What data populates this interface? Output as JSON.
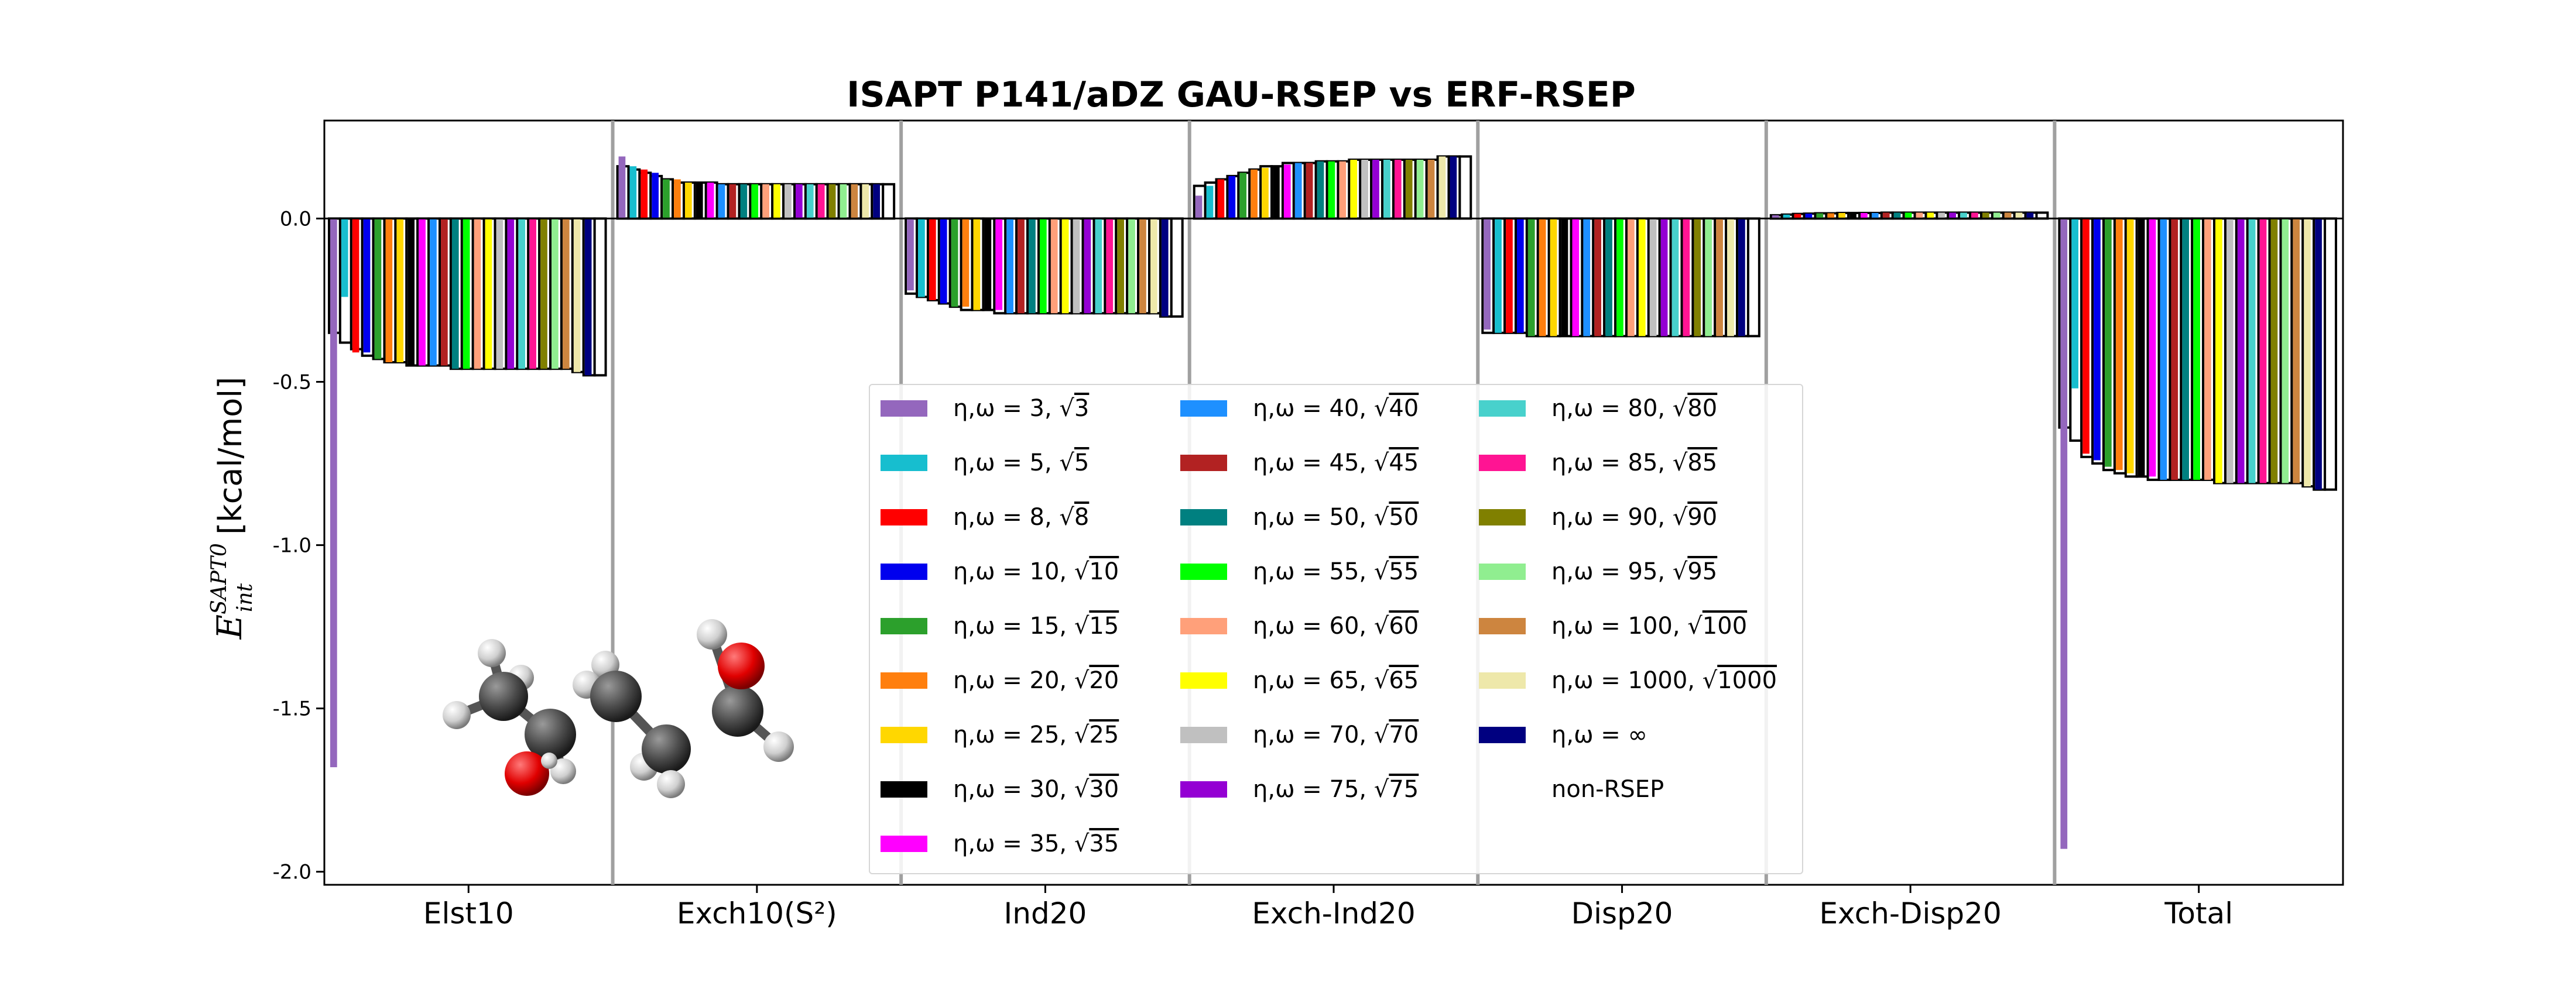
{
  "chart_data": {
    "type": "bar",
    "title": "ISAPT P141/aDZ GAU-RSEP vs ERF-RSEP",
    "ylabel": "E_int^SAPT0 [kcal/mol]",
    "ylim": [
      -2.04,
      0.3
    ],
    "yticks": [
      "0.0",
      "-0.5",
      "-1.0",
      "-1.5",
      "-2.0"
    ],
    "grid": false,
    "legend_position": "lower-center",
    "categories": [
      "Elst10",
      "Exch10(S²)",
      "Ind20",
      "Exch-Ind20",
      "Disp20",
      "Exch-Disp20",
      "Total"
    ],
    "series": [
      {
        "name": "η,ω = 3, √3",
        "color": "#9467bd",
        "gau": [
          -1.68,
          0.19,
          -0.22,
          0.07,
          -0.34,
          0.01,
          -1.93
        ],
        "erf": [
          -0.35,
          0.16,
          -0.23,
          0.1,
          -0.35,
          0.01,
          -0.64
        ]
      },
      {
        "name": "η,ω = 5, √5",
        "color": "#17becf",
        "gau": [
          -0.24,
          0.16,
          -0.24,
          0.1,
          -0.35,
          0.012,
          -0.52
        ],
        "erf": [
          -0.38,
          0.15,
          -0.24,
          0.11,
          -0.35,
          0.012,
          -0.68
        ]
      },
      {
        "name": "η,ω = 8, √8",
        "color": "#ff0000",
        "gau": [
          -0.41,
          0.15,
          -0.25,
          0.12,
          -0.35,
          0.014,
          -0.72
        ],
        "erf": [
          -0.4,
          0.14,
          -0.25,
          0.12,
          -0.35,
          0.014,
          -0.73
        ]
      },
      {
        "name": "η,ω = 10, √10",
        "color": "#0000ee",
        "gau": [
          -0.41,
          0.14,
          -0.26,
          0.13,
          -0.35,
          0.015,
          -0.74
        ],
        "erf": [
          -0.42,
          0.13,
          -0.26,
          0.13,
          -0.35,
          0.015,
          -0.75
        ]
      },
      {
        "name": "η,ω = 15, √15",
        "color": "#2ca02c",
        "gau": [
          -0.43,
          0.12,
          -0.27,
          0.14,
          -0.36,
          0.016,
          -0.76
        ],
        "erf": [
          -0.43,
          0.12,
          -0.27,
          0.14,
          -0.36,
          0.016,
          -0.77
        ]
      },
      {
        "name": "η,ω = 20, √20",
        "color": "#ff7f0e",
        "gau": [
          -0.44,
          0.12,
          -0.27,
          0.15,
          -0.36,
          0.016,
          -0.77
        ],
        "erf": [
          -0.44,
          0.11,
          -0.28,
          0.15,
          -0.36,
          0.016,
          -0.78
        ]
      },
      {
        "name": "η,ω = 25, √25",
        "color": "#ffd700",
        "gau": [
          -0.44,
          0.11,
          -0.28,
          0.155,
          -0.36,
          0.017,
          -0.78
        ],
        "erf": [
          -0.44,
          0.11,
          -0.28,
          0.16,
          -0.36,
          0.017,
          -0.79
        ]
      },
      {
        "name": "η,ω = 30, √30",
        "color": "#000000",
        "gau": [
          -0.45,
          0.11,
          -0.28,
          0.16,
          -0.36,
          0.017,
          -0.79
        ],
        "erf": [
          -0.45,
          0.11,
          -0.28,
          0.16,
          -0.36,
          0.017,
          -0.79
        ]
      },
      {
        "name": "η,ω = 35, √35",
        "color": "#ff00ff",
        "gau": [
          -0.45,
          0.11,
          -0.28,
          0.165,
          -0.36,
          0.017,
          -0.79
        ],
        "erf": [
          -0.45,
          0.11,
          -0.29,
          0.17,
          -0.36,
          0.017,
          -0.8
        ]
      },
      {
        "name": "η,ω = 40, √40",
        "color": "#1e90ff",
        "gau": [
          -0.45,
          0.105,
          -0.29,
          0.17,
          -0.36,
          0.017,
          -0.8
        ],
        "erf": [
          -0.45,
          0.105,
          -0.29,
          0.17,
          -0.36,
          0.017,
          -0.8
        ]
      },
      {
        "name": "η,ω = 45, √45",
        "color": "#b22222",
        "gau": [
          -0.45,
          0.105,
          -0.29,
          0.17,
          -0.36,
          0.018,
          -0.8
        ],
        "erf": [
          -0.45,
          0.105,
          -0.29,
          0.17,
          -0.36,
          0.018,
          -0.8
        ]
      },
      {
        "name": "η,ω = 50, √50",
        "color": "#008080",
        "gau": [
          -0.46,
          0.105,
          -0.29,
          0.175,
          -0.36,
          0.018,
          -0.8
        ],
        "erf": [
          -0.46,
          0.105,
          -0.29,
          0.175,
          -0.36,
          0.018,
          -0.8
        ]
      },
      {
        "name": "η,ω = 55, √55",
        "color": "#00ff00",
        "gau": [
          -0.46,
          0.105,
          -0.29,
          0.175,
          -0.36,
          0.018,
          -0.8
        ],
        "erf": [
          -0.46,
          0.105,
          -0.29,
          0.175,
          -0.36,
          0.018,
          -0.8
        ]
      },
      {
        "name": "η,ω = 60, √60",
        "color": "#ffa07a",
        "gau": [
          -0.46,
          0.105,
          -0.29,
          0.175,
          -0.36,
          0.018,
          -0.8
        ],
        "erf": [
          -0.46,
          0.105,
          -0.29,
          0.175,
          -0.36,
          0.018,
          -0.8
        ]
      },
      {
        "name": "η,ω = 65, √65",
        "color": "#ffff00",
        "gau": [
          -0.46,
          0.105,
          -0.29,
          0.18,
          -0.36,
          0.018,
          -0.81
        ],
        "erf": [
          -0.46,
          0.105,
          -0.29,
          0.18,
          -0.36,
          0.018,
          -0.81
        ]
      },
      {
        "name": "η,ω = 70, √70",
        "color": "#c0c0c0",
        "gau": [
          -0.46,
          0.105,
          -0.29,
          0.18,
          -0.36,
          0.018,
          -0.81
        ],
        "erf": [
          -0.46,
          0.105,
          -0.29,
          0.18,
          -0.36,
          0.018,
          -0.81
        ]
      },
      {
        "name": "η,ω = 75, √75",
        "color": "#9400d3",
        "gau": [
          -0.46,
          0.105,
          -0.29,
          0.18,
          -0.36,
          0.018,
          -0.81
        ],
        "erf": [
          -0.46,
          0.105,
          -0.29,
          0.18,
          -0.36,
          0.018,
          -0.81
        ]
      },
      {
        "name": "η,ω = 80, √80",
        "color": "#48d1cc",
        "gau": [
          -0.46,
          0.105,
          -0.29,
          0.18,
          -0.36,
          0.018,
          -0.81
        ],
        "erf": [
          -0.46,
          0.105,
          -0.29,
          0.18,
          -0.36,
          0.018,
          -0.81
        ]
      },
      {
        "name": "η,ω = 85, √85",
        "color": "#ff1493",
        "gau": [
          -0.46,
          0.105,
          -0.29,
          0.18,
          -0.36,
          0.018,
          -0.81
        ],
        "erf": [
          -0.46,
          0.105,
          -0.29,
          0.18,
          -0.36,
          0.018,
          -0.81
        ]
      },
      {
        "name": "η,ω = 90, √90",
        "color": "#808000",
        "gau": [
          -0.46,
          0.105,
          -0.29,
          0.18,
          -0.36,
          0.018,
          -0.81
        ],
        "erf": [
          -0.46,
          0.105,
          -0.29,
          0.18,
          -0.36,
          0.018,
          -0.81
        ]
      },
      {
        "name": "η,ω = 95, √95",
        "color": "#90ee90",
        "gau": [
          -0.46,
          0.105,
          -0.29,
          0.18,
          -0.36,
          0.018,
          -0.81
        ],
        "erf": [
          -0.46,
          0.105,
          -0.29,
          0.18,
          -0.36,
          0.018,
          -0.81
        ]
      },
      {
        "name": "η,ω = 100, √100",
        "color": "#cd853f",
        "gau": [
          -0.46,
          0.105,
          -0.29,
          0.18,
          -0.36,
          0.018,
          -0.81
        ],
        "erf": [
          -0.46,
          0.105,
          -0.29,
          0.18,
          -0.36,
          0.018,
          -0.81
        ]
      },
      {
        "name": "η,ω = 1000, √1000",
        "color": "#eee8aa",
        "gau": [
          -0.47,
          0.105,
          -0.29,
          0.19,
          -0.36,
          0.018,
          -0.82
        ],
        "erf": [
          -0.47,
          0.105,
          -0.29,
          0.19,
          -0.36,
          0.018,
          -0.82
        ]
      },
      {
        "name": "η,ω = ∞",
        "color": "#000080",
        "gau": [
          -0.48,
          0.105,
          -0.3,
          0.19,
          -0.36,
          0.018,
          -0.83
        ],
        "erf": [
          -0.48,
          0.105,
          -0.3,
          0.19,
          -0.36,
          0.018,
          -0.83
        ]
      },
      {
        "name": "non-RSEP",
        "color": "#ffffff",
        "gau": [
          -0.48,
          0.105,
          -0.3,
          0.19,
          -0.36,
          0.018,
          -0.83
        ],
        "erf": [
          -0.48,
          0.105,
          -0.3,
          0.19,
          -0.36,
          0.018,
          -0.83
        ]
      }
    ]
  },
  "legend": {
    "col1": [
      {
        "prefix": "η,ω = 3, ",
        "root": "3",
        "color": "#9467bd"
      },
      {
        "prefix": "η,ω = 5, ",
        "root": "5",
        "color": "#17becf"
      },
      {
        "prefix": "η,ω = 8, ",
        "root": "8",
        "color": "#ff0000"
      },
      {
        "prefix": "η,ω = 10, ",
        "root": "10",
        "color": "#0000ee"
      },
      {
        "prefix": "η,ω = 15, ",
        "root": "15",
        "color": "#2ca02c"
      },
      {
        "prefix": "η,ω = 20, ",
        "root": "20",
        "color": "#ff7f0e"
      },
      {
        "prefix": "η,ω = 25, ",
        "root": "25",
        "color": "#ffd700"
      },
      {
        "prefix": "η,ω = 30, ",
        "root": "30",
        "color": "#000000"
      },
      {
        "prefix": "η,ω = 35, ",
        "root": "35",
        "color": "#ff00ff"
      }
    ],
    "col2": [
      {
        "prefix": "η,ω = 40, ",
        "root": "40",
        "color": "#1e90ff"
      },
      {
        "prefix": "η,ω = 45, ",
        "root": "45",
        "color": "#b22222"
      },
      {
        "prefix": "η,ω = 50, ",
        "root": "50",
        "color": "#008080"
      },
      {
        "prefix": "η,ω = 55, ",
        "root": "55",
        "color": "#00ff00"
      },
      {
        "prefix": "η,ω = 60, ",
        "root": "60",
        "color": "#ffa07a"
      },
      {
        "prefix": "η,ω = 65, ",
        "root": "65",
        "color": "#ffff00"
      },
      {
        "prefix": "η,ω = 70, ",
        "root": "70",
        "color": "#c0c0c0"
      },
      {
        "prefix": "η,ω = 75, ",
        "root": "75",
        "color": "#9400d3"
      }
    ],
    "col3": [
      {
        "prefix": "η,ω = 80, ",
        "root": "80",
        "color": "#48d1cc"
      },
      {
        "prefix": "η,ω = 85, ",
        "root": "85",
        "color": "#ff1493"
      },
      {
        "prefix": "η,ω = 90, ",
        "root": "90",
        "color": "#808000"
      },
      {
        "prefix": "η,ω = 95, ",
        "root": "95",
        "color": "#90ee90"
      },
      {
        "prefix": "η,ω = 100, ",
        "root": "100",
        "color": "#cd853f"
      },
      {
        "prefix": "η,ω = 1000, ",
        "root": "1000",
        "color": "#eee8aa"
      },
      {
        "prefix": "η,ω = ∞",
        "root": "",
        "color": "#000080"
      },
      {
        "prefix": "non-RSEP",
        "root": "",
        "color": "none"
      }
    ]
  }
}
